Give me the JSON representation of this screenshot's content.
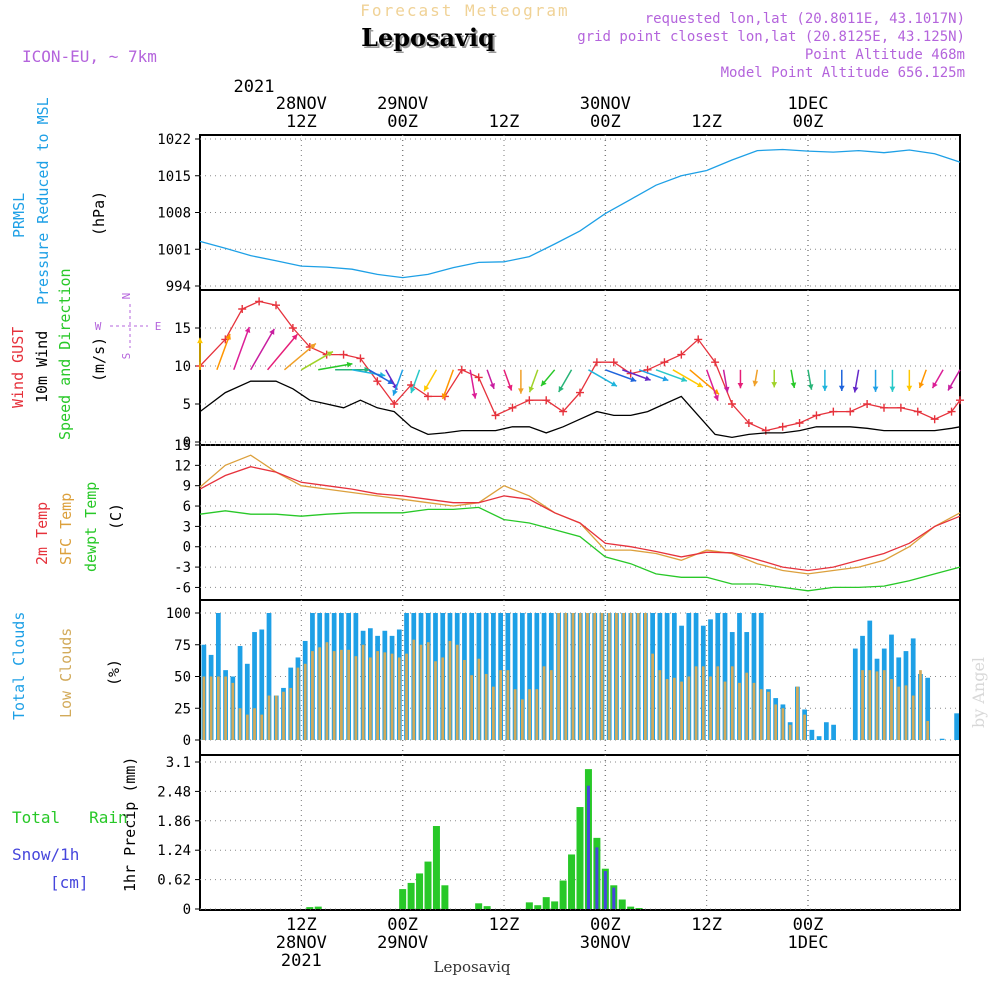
{
  "header": {
    "subtitle": "Forecast Meteogram",
    "location": "Leposaviq",
    "model": "ICON-EU, ~ 7km",
    "requested": "requested lon,lat (20.8011E, 43.1017N)",
    "gridpoint": "grid point closest lon,lat (20.8125E, 43.125N)",
    "point_alt": "Point Altitude 468m",
    "model_alt": "Model Point Altitude 656.125m",
    "footer": "Leposaviq",
    "watermark": "by Angel"
  },
  "colors": {
    "pressure": "#1ea0e6",
    "gust": "#e6323c",
    "wind10m": "#000000",
    "direction": "#28c828",
    "t2m": "#e6323c",
    "sfc": "#dca03c",
    "dewpt": "#28c828",
    "totalcloud": "#1ea0e6",
    "lowcloud": "#d2aa5a",
    "rain": "#28c828",
    "snow": "#4646dc",
    "meta": "#b464dc",
    "title_pale": "#f0d296"
  },
  "time_axis": {
    "top_year": "2021",
    "top": [
      {
        "h": 12,
        "lines": [
          "28NOV",
          "12Z"
        ]
      },
      {
        "h": 24,
        "lines": [
          "29NOV",
          "00Z"
        ]
      },
      {
        "h": 36,
        "lines": [
          "",
          "12Z"
        ]
      },
      {
        "h": 48,
        "lines": [
          "30NOV",
          "00Z"
        ]
      },
      {
        "h": 60,
        "lines": [
          "",
          "12Z"
        ]
      },
      {
        "h": 72,
        "lines": [
          "1DEC",
          "00Z"
        ]
      }
    ],
    "bottom": [
      {
        "h": 12,
        "lines": [
          "12Z",
          "28NOV",
          "2021"
        ]
      },
      {
        "h": 24,
        "lines": [
          "00Z",
          "29NOV"
        ]
      },
      {
        "h": 36,
        "lines": [
          "12Z"
        ]
      },
      {
        "h": 48,
        "lines": [
          "00Z",
          "30NOV"
        ]
      },
      {
        "h": 60,
        "lines": [
          "12Z"
        ]
      },
      {
        "h": 72,
        "lines": [
          "00Z",
          "1DEC"
        ]
      }
    ]
  },
  "panel_labels": {
    "pressure": [
      "PRMSL",
      "Pressure Reduced to MSL",
      "(hPa)"
    ],
    "wind": [
      "Wind GUST",
      "10m Wind",
      "Speed and Direction",
      "(m/s)"
    ],
    "compass": [
      "N",
      "W",
      "E",
      "S"
    ],
    "temp": [
      "2m Temp",
      "SFC Temp",
      "dewpt Temp",
      "(C)"
    ],
    "clouds": [
      "Total Clouds",
      "Low Clouds",
      "(%)"
    ],
    "precip": [
      "Total Rain",
      "Snow/1h",
      "[cm]",
      "1hr Precip (mm)"
    ]
  },
  "chart_data": [
    {
      "type": "line",
      "title": "PRMSL Pressure Reduced to MSL",
      "ylabel": "(hPa)",
      "ylim": [
        994,
        1022
      ],
      "yticks": [
        994,
        1001,
        1008,
        1015,
        1022
      ],
      "series": [
        {
          "name": "PRMSL",
          "x": [
            0,
            3,
            6,
            9,
            12,
            15,
            18,
            21,
            24,
            27,
            30,
            33,
            36,
            39,
            42,
            45,
            48,
            51,
            54,
            57,
            60,
            63,
            66,
            69,
            72,
            75,
            78,
            81,
            84,
            87,
            90
          ],
          "values": [
            1002.5,
            1001.2,
            999.8,
            998.8,
            997.8,
            997.6,
            997.2,
            996.2,
            995.6,
            996.2,
            997.5,
            998.5,
            998.6,
            999.6,
            1002,
            1004.5,
            1007.8,
            1010.5,
            1013.2,
            1015,
            1016,
            1018,
            1019.8,
            1020,
            1019.7,
            1019.5,
            1019.8,
            1019.4,
            1019.9,
            1019.2,
            1017.6
          ]
        }
      ]
    },
    {
      "type": "line",
      "title": "Wind GUST / 10m Wind Speed and Direction",
      "ylabel": "(m/s)",
      "ylim": [
        0,
        20
      ],
      "yticks": [
        0,
        5,
        10,
        15
      ],
      "series": [
        {
          "name": "Wind GUST",
          "x": [
            0,
            3,
            5,
            7,
            9,
            11,
            13,
            15,
            17,
            19,
            21,
            23,
            25,
            27,
            29,
            31,
            33,
            35,
            37,
            39,
            41,
            43,
            45,
            47,
            49,
            51,
            53,
            55,
            57,
            59,
            61,
            63,
            65,
            67,
            69,
            71,
            73,
            75,
            77,
            79,
            81,
            83,
            85,
            87,
            89,
            90
          ],
          "values": [
            10,
            13.5,
            17.5,
            18.5,
            18,
            15,
            12.5,
            11.5,
            11.5,
            11,
            8,
            5,
            7.5,
            6,
            6,
            9.5,
            8.5,
            3.5,
            4.5,
            5.5,
            5.5,
            4,
            6.5,
            10.5,
            10.5,
            9,
            9.5,
            10.5,
            11.5,
            13.5,
            10.5,
            5,
            2.5,
            1.5,
            2,
            2.5,
            3.5,
            4,
            4,
            5,
            4.5,
            4.5,
            4,
            3,
            4,
            5.5
          ]
        },
        {
          "name": "10m Wind",
          "x": [
            0,
            3,
            6,
            9,
            11,
            13,
            15,
            17,
            19,
            21,
            23,
            25,
            27,
            29,
            31,
            33,
            35,
            37,
            39,
            41,
            43,
            45,
            47,
            49,
            51,
            53,
            55,
            57,
            59,
            61,
            63,
            65,
            67,
            69,
            71,
            73,
            75,
            77,
            79,
            81,
            83,
            85,
            87,
            89,
            90
          ],
          "values": [
            4,
            6.5,
            8,
            8,
            7,
            5.5,
            5,
            4.5,
            5.5,
            4.5,
            4,
            2,
            1,
            1.2,
            1.5,
            1.5,
            1.5,
            2,
            2,
            1.2,
            2,
            3,
            4,
            3.5,
            3.5,
            4,
            5,
            6,
            3.5,
            1,
            0.6,
            1,
            1.2,
            1.2,
            1.5,
            2,
            2,
            2,
            1.8,
            1.5,
            1.5,
            1.5,
            1.5,
            1.8,
            2
          ]
        }
      ],
      "direction_series_deg": [
        180,
        200,
        200,
        210,
        220,
        230,
        240,
        260,
        270,
        280,
        300,
        330,
        20,
        20,
        30,
        20,
        350,
        340,
        340,
        360,
        20,
        40,
        30,
        300,
        290,
        290,
        290,
        290,
        300,
        310,
        340,
        350,
        360,
        10,
        360,
        350,
        350,
        360,
        360,
        10,
        360,
        360,
        360,
        20,
        30,
        30
      ]
    },
    {
      "type": "line",
      "title": "2m Temp / SFC Temp / dewpt Temp",
      "ylabel": "(C)",
      "ylim": [
        -8,
        15
      ],
      "yticks": [
        -6,
        -3,
        0,
        3,
        6,
        9,
        12,
        15
      ],
      "x": [
        0,
        3,
        6,
        9,
        12,
        15,
        18,
        21,
        24,
        27,
        30,
        33,
        36,
        39,
        42,
        45,
        48,
        51,
        54,
        57,
        60,
        63,
        66,
        69,
        72,
        75,
        78,
        81,
        84,
        87,
        90
      ],
      "series": [
        {
          "name": "2m Temp",
          "values": [
            8.5,
            10.5,
            11.8,
            11,
            9.5,
            9,
            8.5,
            7.8,
            7.5,
            7,
            6.5,
            6.5,
            7.5,
            7,
            5,
            3.5,
            0.5,
            0,
            -0.7,
            -1.5,
            -0.8,
            -0.9,
            -1.9,
            -3,
            -3.5,
            -3,
            -2,
            -1,
            0.5,
            3,
            4.5
          ]
        },
        {
          "name": "SFC Temp",
          "values": [
            8.8,
            12,
            13.5,
            11,
            9,
            8.5,
            8,
            7.5,
            7,
            6.5,
            6,
            6.5,
            9,
            7.5,
            5,
            3.5,
            -0.5,
            -0.5,
            -1,
            -2,
            -0.5,
            -1,
            -2.5,
            -3.5,
            -4,
            -3.5,
            -3,
            -2,
            0,
            3,
            5
          ]
        },
        {
          "name": "dewpt Temp",
          "values": [
            4.8,
            5.3,
            4.8,
            4.8,
            4.5,
            4.8,
            5,
            5,
            5,
            5.5,
            5.5,
            5.8,
            4,
            3.5,
            2.5,
            1.5,
            -1.5,
            -2.5,
            -4,
            -4.5,
            -4.5,
            -5.5,
            -5.5,
            -6,
            -6.5,
            -6,
            -6,
            -5.8,
            -5,
            -4,
            -3
          ]
        }
      ]
    },
    {
      "type": "bar",
      "title": "Total Clouds / Low Clouds",
      "ylabel": "(%)",
      "ylim": [
        0,
        100
      ],
      "yticks": [
        0,
        25,
        50,
        75,
        100
      ],
      "series": [
        {
          "name": "Total Clouds",
          "values": [
            75,
            67,
            100,
            55,
            50,
            74,
            60,
            85,
            87,
            100,
            35,
            41,
            57,
            65,
            78,
            100,
            100,
            100,
            100,
            100,
            100,
            100,
            86,
            88,
            82,
            86,
            82,
            87,
            100,
            100,
            100,
            100,
            100,
            100,
            100,
            100,
            100,
            100,
            100,
            100,
            100,
            100,
            100,
            100,
            100,
            100,
            100,
            100,
            100,
            100,
            100,
            100,
            100,
            100,
            100,
            100,
            100,
            100,
            100,
            100,
            100,
            100,
            100,
            100,
            100,
            100,
            90,
            100,
            100,
            90,
            95,
            100,
            100,
            85,
            100,
            85,
            100,
            100,
            40,
            33,
            28,
            14,
            42,
            24,
            8,
            3,
            14,
            12,
            0,
            0,
            72,
            82,
            94,
            64,
            72,
            83,
            65,
            70,
            80,
            52,
            49,
            0,
            1,
            0,
            21
          ]
        },
        {
          "name": "Low Clouds",
          "values": [
            50,
            50,
            50,
            50,
            45,
            25,
            20,
            25,
            20,
            35,
            35,
            38,
            41,
            57,
            60,
            70,
            73,
            77,
            70,
            71,
            71,
            66,
            75,
            65,
            70,
            69,
            68,
            65,
            68,
            79,
            75,
            77,
            62,
            65,
            78,
            75,
            63,
            51,
            64,
            52,
            42,
            55,
            55,
            40,
            32,
            40,
            40,
            58,
            55,
            100,
            100,
            100,
            100,
            100,
            100,
            100,
            100,
            100,
            100,
            100,
            100,
            100,
            68,
            55,
            48,
            49,
            46,
            50,
            58,
            58,
            50,
            58,
            46,
            58,
            45,
            53,
            45,
            40,
            38,
            28,
            25,
            12,
            42,
            20,
            0,
            0,
            0,
            0,
            0,
            0,
            0,
            55,
            55,
            54,
            55,
            48,
            42,
            43,
            35,
            55,
            15,
            0,
            0,
            0,
            0
          ]
        }
      ]
    },
    {
      "type": "bar",
      "title": "Total Rain / Snow 1h",
      "ylabel": "1hr Precip (mm)",
      "ylim": [
        0,
        3.1
      ],
      "yticks": [
        0,
        0.62,
        1.24,
        1.86,
        2.48,
        3.1
      ],
      "ytick_labels": [
        "0",
        "0.62",
        "1.24",
        "1.86",
        "2.48",
        "3.1"
      ],
      "series": [
        {
          "name": "Total Rain",
          "x": [
            13,
            14,
            24,
            25,
            26,
            27,
            28,
            29,
            33,
            34,
            39,
            40,
            41,
            42,
            43,
            44,
            45,
            46,
            47,
            48,
            49,
            50,
            51,
            52
          ],
          "values": [
            0.04,
            0.05,
            0.42,
            0.55,
            0.75,
            1.0,
            1.75,
            0.5,
            0.12,
            0.06,
            0.14,
            0.08,
            0.25,
            0.16,
            0.6,
            1.15,
            2.15,
            2.95,
            1.5,
            0.85,
            0.5,
            0.2,
            0.05,
            0.02
          ]
        },
        {
          "name": "Snow/1h",
          "x": [
            46,
            47,
            48,
            49
          ],
          "values": [
            2.6,
            1.3,
            0.8,
            0.45
          ]
        }
      ]
    }
  ]
}
